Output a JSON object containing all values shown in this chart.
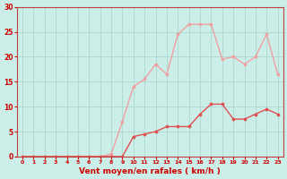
{
  "y_mean": [
    0,
    0,
    0,
    0,
    0,
    0,
    0,
    0,
    0,
    0,
    4,
    4.5,
    5,
    6,
    6,
    6,
    8.5,
    10.5,
    10.5,
    7.5,
    7.5,
    8.5,
    9.5,
    8.5
  ],
  "y_gust": [
    0,
    0,
    0,
    0,
    0,
    0,
    0,
    0,
    0.5,
    7,
    14,
    15.5,
    18.5,
    16.5,
    24.5,
    26.5,
    26.5,
    26.5,
    19.5,
    20,
    18.5,
    20,
    24.5,
    16.5
  ],
  "x": [
    0,
    1,
    2,
    3,
    4,
    5,
    6,
    7,
    8,
    9,
    10,
    11,
    12,
    13,
    14,
    15,
    16,
    17,
    18,
    19,
    20,
    21,
    22,
    23
  ],
  "color_mean": "#e05050",
  "color_gust": "#f0a0a0",
  "bg_color": "#cceee8",
  "grid_color": "#aad8d0",
  "axis_color": "#c04040",
  "tick_color": "#cc0000",
  "label_color": "#cc0000",
  "xlabel": "Vent moyen/en rafales ( km/h )",
  "ylim": [
    0,
    30
  ],
  "xlim_min": -0.5,
  "xlim_max": 23.5,
  "yticks": [
    0,
    5,
    10,
    15,
    20,
    25,
    30
  ],
  "xticks": [
    0,
    1,
    2,
    3,
    4,
    5,
    6,
    7,
    8,
    9,
    10,
    11,
    12,
    13,
    14,
    15,
    16,
    17,
    18,
    19,
    20,
    21,
    22,
    23
  ]
}
